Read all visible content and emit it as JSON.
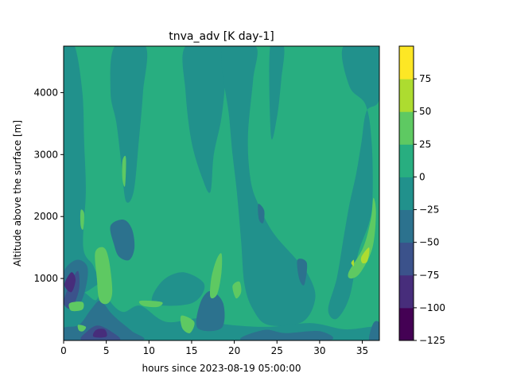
{
  "chart_data": {
    "type": "heatmap",
    "plot_kind": "filled-contour",
    "title": "tnva_adv [K day-1]",
    "xlabel": "hours since 2023-08-19 05:00:00",
    "ylabel": "Altitude above the surface [m]",
    "xlim": [
      0,
      37
    ],
    "ylim": [
      0,
      4750
    ],
    "x_ticks": [
      0,
      5,
      10,
      15,
      20,
      25,
      30,
      35
    ],
    "y_ticks": [
      1000,
      2000,
      3000,
      4000
    ],
    "grid": false,
    "colorbar": {
      "levels": [
        -125,
        -100,
        -75,
        -50,
        -25,
        0,
        25,
        50,
        75
      ],
      "colors": [
        "#440154",
        "#472d7b",
        "#3b528b",
        "#2c728e",
        "#21918c",
        "#28ae80",
        "#5ec962",
        "#addc30",
        "#fde725"
      ],
      "tick_labels": [
        "−125",
        "−100",
        "−75",
        "−50",
        "−25",
        "0",
        "25",
        "50",
        "75"
      ]
    },
    "regions": [
      {
        "band": "0 to 25",
        "points": [
          [
            0,
            4750
          ],
          [
            37,
            4750
          ],
          [
            37,
            0
          ],
          [
            0,
            0
          ]
        ]
      },
      {
        "band": "-25 to 0",
        "points": [
          [
            0,
            4750
          ],
          [
            1.3,
            4750
          ],
          [
            2.2,
            4000
          ],
          [
            2.4,
            3200
          ],
          [
            2.6,
            2400
          ],
          [
            2.3,
            1500
          ],
          [
            3.5,
            1200
          ],
          [
            4,
            900
          ],
          [
            0,
            1100
          ]
        ]
      },
      {
        "band": "-25 to 0",
        "points": [
          [
            5.5,
            4000
          ],
          [
            6.2,
            3500
          ],
          [
            6.8,
            2800
          ],
          [
            7.3,
            2250
          ],
          [
            8.2,
            2400
          ],
          [
            8.8,
            3200
          ],
          [
            9.3,
            4000
          ],
          [
            9.6,
            4750
          ],
          [
            6,
            4750
          ]
        ]
      },
      {
        "band": "-25 to 0",
        "points": [
          [
            14.3,
            4750
          ],
          [
            19,
            4750
          ],
          [
            19,
            4300
          ],
          [
            18.5,
            3600
          ],
          [
            17.6,
            3000
          ],
          [
            17.2,
            2400
          ],
          [
            16.3,
            2600
          ],
          [
            15,
            3200
          ],
          [
            14.3,
            4000
          ]
        ]
      },
      {
        "band": "-25 to 0",
        "points": [
          [
            18.6,
            4750
          ],
          [
            22.5,
            4750
          ],
          [
            22.2,
            4200
          ],
          [
            21.6,
            3300
          ],
          [
            21.9,
            2600
          ],
          [
            22.8,
            2200
          ],
          [
            24.5,
            1750
          ],
          [
            27,
            1350
          ],
          [
            28.5,
            1100
          ],
          [
            29.5,
            700
          ],
          [
            28,
            300
          ],
          [
            24,
            250
          ],
          [
            22.2,
            500
          ],
          [
            21.2,
            900
          ],
          [
            20.8,
            1600
          ],
          [
            20.3,
            2400
          ],
          [
            19.8,
            3000
          ],
          [
            19.4,
            3600
          ]
        ]
      },
      {
        "band": "-25 to 0",
        "points": [
          [
            24.2,
            4750
          ],
          [
            25.8,
            4750
          ],
          [
            25.5,
            4200
          ],
          [
            25,
            3600
          ],
          [
            24.3,
            3300
          ]
        ]
      },
      {
        "band": "-25 to 0",
        "points": [
          [
            32.8,
            4750
          ],
          [
            37,
            4750
          ],
          [
            37,
            3900
          ],
          [
            35.5,
            3700
          ],
          [
            34.9,
            3200
          ],
          [
            34.3,
            2700
          ],
          [
            33.5,
            2200
          ],
          [
            32.8,
            1650
          ],
          [
            32,
            1000
          ],
          [
            31,
            500
          ],
          [
            32,
            350
          ],
          [
            33.5,
            700
          ],
          [
            34.5,
            1400
          ],
          [
            35.8,
            1900
          ],
          [
            36.2,
            2300
          ],
          [
            36.1,
            3200
          ],
          [
            35.4,
            3800
          ],
          [
            33.5,
            4100
          ]
        ]
      },
      {
        "band": "-25 to 0",
        "points": [
          [
            0,
            0
          ],
          [
            37,
            0
          ],
          [
            37,
            220
          ],
          [
            33,
            180
          ],
          [
            29,
            280
          ],
          [
            24,
            220
          ],
          [
            19,
            260
          ],
          [
            16,
            360
          ],
          [
            12,
            300
          ],
          [
            9,
            560
          ],
          [
            7,
            460
          ],
          [
            5.5,
            620
          ],
          [
            4.5,
            900
          ],
          [
            3.8,
            650
          ],
          [
            2,
            800
          ],
          [
            0,
            700
          ]
        ]
      },
      {
        "band": "-25 to 0",
        "points": [
          [
            10.5,
            600
          ],
          [
            15,
            600
          ],
          [
            16.5,
            900
          ],
          [
            14,
            1100
          ],
          [
            11.5,
            950
          ]
        ]
      },
      {
        "band": "-50 to -25",
        "points": [
          [
            5.5,
            1850
          ],
          [
            7,
            1950
          ],
          [
            8,
            1800
          ],
          [
            8.3,
            1500
          ],
          [
            7.7,
            1300
          ],
          [
            6.5,
            1350
          ],
          [
            5.9,
            1550
          ]
        ]
      },
      {
        "band": "-50 to -25",
        "points": [
          [
            0,
            1100
          ],
          [
            1.5,
            1300
          ],
          [
            2.8,
            1180
          ],
          [
            2.5,
            800
          ],
          [
            1.6,
            560
          ],
          [
            0,
            660
          ]
        ]
      },
      {
        "band": "-50 to -25",
        "points": [
          [
            0,
            0
          ],
          [
            9,
            0
          ],
          [
            8,
            150
          ],
          [
            6.5,
            320
          ],
          [
            5.5,
            450
          ],
          [
            4.3,
            640
          ],
          [
            3.2,
            500
          ],
          [
            1.8,
            250
          ],
          [
            0,
            200
          ]
        ]
      },
      {
        "band": "-50 to -25",
        "points": [
          [
            15.7,
            200
          ],
          [
            18.5,
            200
          ],
          [
            18.7,
            600
          ],
          [
            17.2,
            800
          ],
          [
            16,
            600
          ]
        ]
      },
      {
        "band": "-50 to -25",
        "points": [
          [
            22.8,
            2200
          ],
          [
            23.5,
            2100
          ],
          [
            23.4,
            1900
          ],
          [
            22.9,
            1950
          ]
        ]
      },
      {
        "band": "-50 to -25",
        "points": [
          [
            27.4,
            1300
          ],
          [
            28.5,
            1250
          ],
          [
            28.2,
            900
          ],
          [
            27.6,
            1000
          ]
        ]
      },
      {
        "band": "-50 to -25",
        "points": [
          [
            35.8,
            0
          ],
          [
            37,
            0
          ],
          [
            37,
            280
          ],
          [
            36.3,
            280
          ]
        ]
      },
      {
        "band": "-50 to -25",
        "points": [
          [
            21,
            0
          ],
          [
            31,
            0
          ],
          [
            30,
            150
          ],
          [
            26,
            120
          ],
          [
            23.5,
            170
          ]
        ]
      },
      {
        "band": "-75 to -50",
        "points": [
          [
            0,
            620
          ],
          [
            0.9,
            950
          ],
          [
            1.7,
            1120
          ],
          [
            1.8,
            820
          ],
          [
            0.9,
            520
          ]
        ]
      },
      {
        "band": "-75 to -50",
        "points": [
          [
            2.2,
            0
          ],
          [
            6.5,
            0
          ],
          [
            5.5,
            150
          ],
          [
            4,
            240
          ],
          [
            2.8,
            150
          ]
        ]
      },
      {
        "band": "-100 to -75",
        "points": [
          [
            0.1,
            900
          ],
          [
            0.9,
            1100
          ],
          [
            1.4,
            980
          ],
          [
            0.9,
            780
          ]
        ]
      },
      {
        "band": "-100 to -75",
        "points": [
          [
            3.5,
            60
          ],
          [
            5,
            60
          ],
          [
            4.8,
            180
          ],
          [
            3.8,
            170
          ]
        ]
      },
      {
        "band": "25 to 50",
        "points": [
          [
            3.7,
            1420
          ],
          [
            4.7,
            1500
          ],
          [
            5.3,
            1300
          ],
          [
            5.7,
            800
          ],
          [
            5.2,
            600
          ],
          [
            4.2,
            650
          ],
          [
            3.9,
            1000
          ]
        ]
      },
      {
        "band": "25 to 50",
        "points": [
          [
            17.3,
            1000
          ],
          [
            17.9,
            1300
          ],
          [
            18.5,
            1400
          ],
          [
            18.5,
            1100
          ],
          [
            18,
            750
          ],
          [
            17.2,
            700
          ]
        ]
      },
      {
        "band": "25 to 50",
        "points": [
          [
            19.8,
            880
          ],
          [
            20.6,
            950
          ],
          [
            20.8,
            780
          ],
          [
            20.2,
            680
          ]
        ]
      },
      {
        "band": "25 to 50",
        "points": [
          [
            33.4,
            1100
          ],
          [
            35.1,
            1500
          ],
          [
            36,
            1950
          ],
          [
            36.3,
            2300
          ],
          [
            36.6,
            2050
          ],
          [
            36.2,
            1500
          ],
          [
            34.8,
            1100
          ],
          [
            33.7,
            1000
          ]
        ]
      },
      {
        "band": "25 to 50",
        "points": [
          [
            6.9,
            2900
          ],
          [
            7.3,
            2950
          ],
          [
            7.2,
            2500
          ],
          [
            6.9,
            2600
          ]
        ]
      },
      {
        "band": "25 to 50",
        "points": [
          [
            2,
            2100
          ],
          [
            2.4,
            2050
          ],
          [
            2.3,
            1800
          ],
          [
            2,
            1850
          ]
        ]
      },
      {
        "band": "25 to 50",
        "points": [
          [
            0.7,
            600
          ],
          [
            2.2,
            620
          ],
          [
            2.2,
            500
          ],
          [
            0.9,
            480
          ]
        ]
      },
      {
        "band": "25 to 50",
        "points": [
          [
            9,
            640
          ],
          [
            11.5,
            620
          ],
          [
            11,
            540
          ],
          [
            9.3,
            560
          ]
        ]
      },
      {
        "band": "25 to 50",
        "points": [
          [
            13.8,
            400
          ],
          [
            15.3,
            300
          ],
          [
            14.8,
            120
          ],
          [
            13.9,
            200
          ]
        ]
      },
      {
        "band": "25 to 50",
        "points": [
          [
            1.7,
            250
          ],
          [
            2.6,
            220
          ],
          [
            2.3,
            150
          ],
          [
            1.8,
            160
          ]
        ]
      },
      {
        "band": "50 to 75",
        "points": [
          [
            34.9,
            1350
          ],
          [
            35.8,
            1500
          ],
          [
            35.6,
            1280
          ],
          [
            35,
            1250
          ]
        ]
      },
      {
        "band": "50 to 75",
        "points": [
          [
            33.7,
            1250
          ],
          [
            34,
            1300
          ],
          [
            34,
            1200
          ]
        ]
      }
    ]
  }
}
